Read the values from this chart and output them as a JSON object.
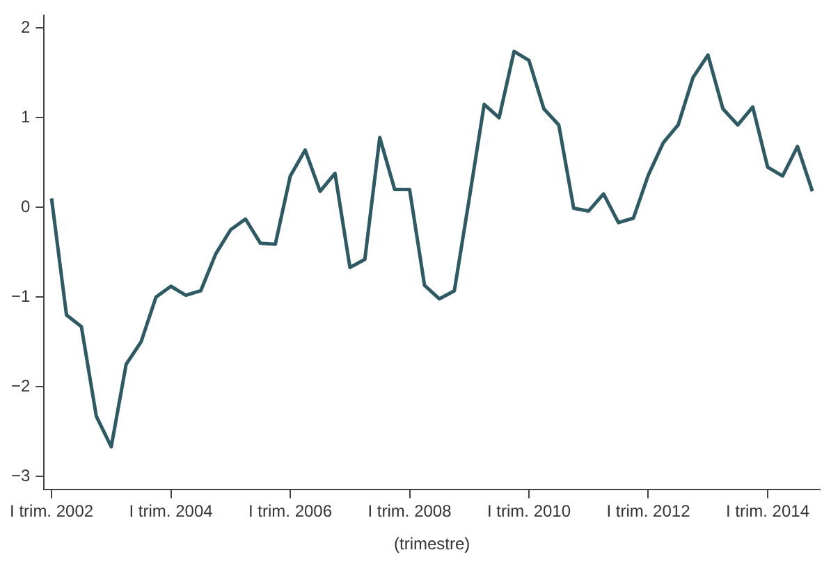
{
  "chart_data": {
    "type": "line",
    "xlabel": "(trimestre)",
    "categories": [
      "I trim. 2002",
      null,
      null,
      null,
      null,
      null,
      null,
      null,
      "I trim. 2004",
      null,
      null,
      null,
      null,
      null,
      null,
      null,
      "I trim. 2006",
      null,
      null,
      null,
      null,
      null,
      null,
      null,
      "I trim. 2008",
      null,
      null,
      null,
      null,
      null,
      null,
      null,
      "I trim. 2010",
      null,
      null,
      null,
      null,
      null,
      null,
      null,
      "I trim. 2012",
      null,
      null,
      null,
      null,
      null,
      null,
      null,
      "I trim. 2014",
      null,
      null,
      null
    ],
    "series": [
      {
        "color": "#2e5a63",
        "values": [
          0.1,
          -1.2,
          -1.33,
          -2.33,
          -2.67,
          -1.75,
          -1.5,
          -1.0,
          -0.88,
          -0.98,
          -0.93,
          -0.52,
          -0.25,
          -0.13,
          -0.4,
          -0.41,
          0.35,
          0.64,
          0.18,
          0.38,
          -0.67,
          -0.58,
          0.78,
          0.2,
          0.2,
          -0.87,
          -1.02,
          -0.93,
          0.1,
          1.15,
          1.0,
          1.74,
          1.64,
          1.1,
          0.92,
          -0.01,
          -0.04,
          0.15,
          -0.17,
          -0.12,
          0.36,
          0.72,
          0.92,
          1.45,
          1.7,
          1.1,
          0.92,
          1.12,
          0.45,
          0.35,
          0.68,
          0.18
        ]
      }
    ],
    "ylim": [
      -3.15,
      2.14
    ],
    "yticks": [
      -3,
      -2,
      -1,
      0,
      1,
      2
    ],
    "grid": false,
    "legend": false,
    "marker": "none",
    "line_style": "solid"
  }
}
